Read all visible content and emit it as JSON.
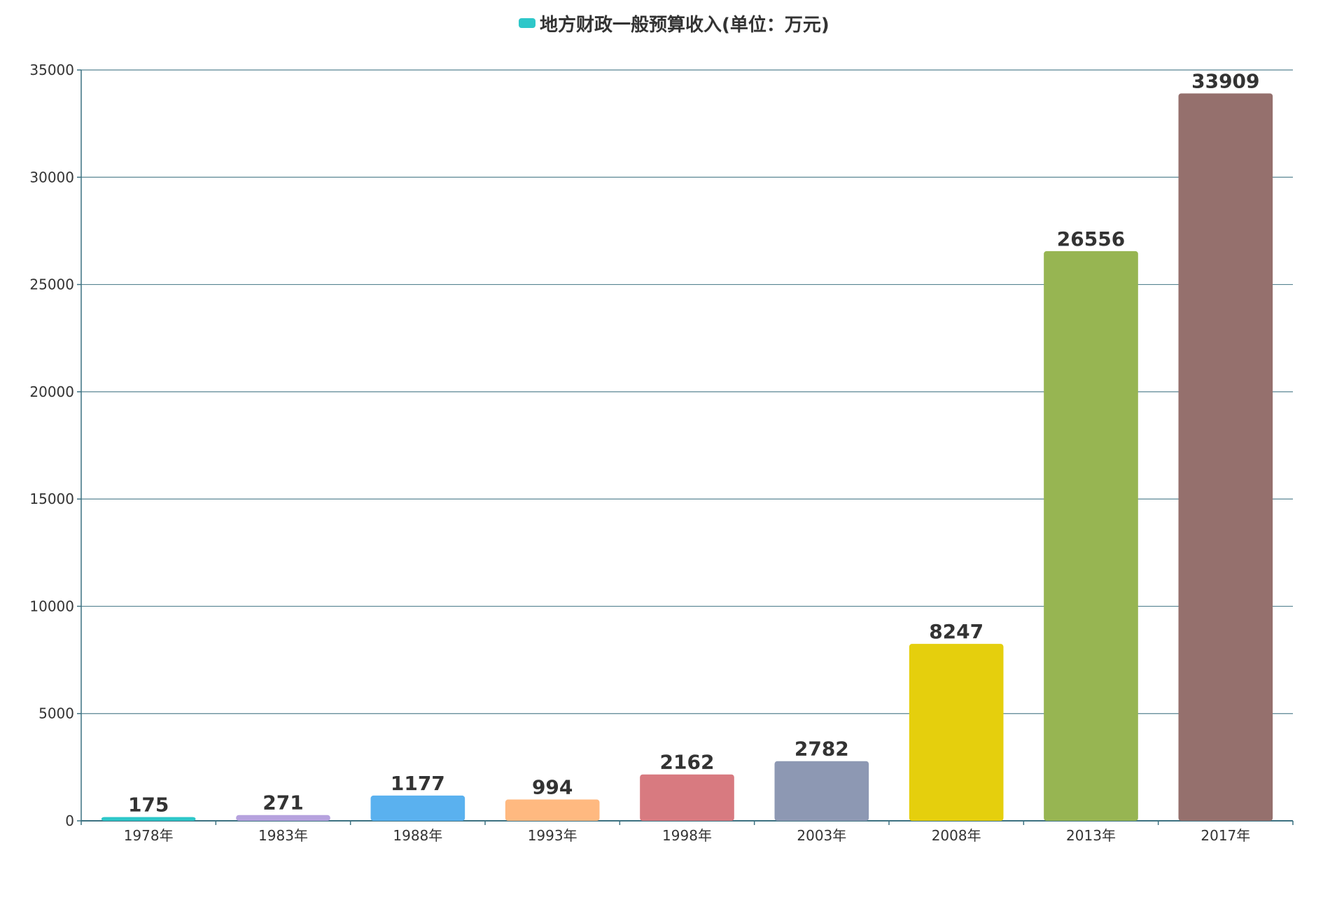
{
  "chart_data": {
    "type": "bar",
    "legend": {
      "label": "地方财政一般预算收入(单位：万元)",
      "color": "#2ec7c9",
      "position": "top-center"
    },
    "categories": [
      "1978年",
      "1983年",
      "1988年",
      "1993年",
      "1998年",
      "2003年",
      "2008年",
      "2013年",
      "2017年"
    ],
    "series": [
      {
        "name": "地方财政一般预算收入(单位：万元)",
        "values": [
          175,
          271,
          1177,
          994,
          2162,
          2782,
          8247,
          26556,
          33909
        ]
      }
    ],
    "bar_colors": [
      "#2ec7c9",
      "#b6a2de",
      "#5ab1ef",
      "#ffb980",
      "#d87a80",
      "#8d98b3",
      "#e5cf0d",
      "#97b552",
      "#95706d"
    ],
    "ylim": [
      0,
      35000
    ],
    "yticks": [
      0,
      5000,
      10000,
      15000,
      20000,
      25000,
      30000,
      35000
    ],
    "grid": true,
    "data_labels": true,
    "xlabel": "",
    "ylabel": "",
    "axis_color": "#3b7080"
  }
}
